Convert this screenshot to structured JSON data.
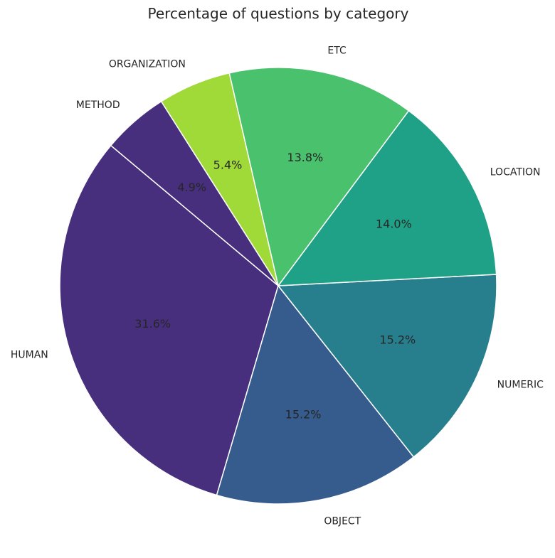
{
  "chart_data": {
    "type": "pie",
    "title": "Percentage of questions by category",
    "labels": [
      "HUMAN",
      "OBJECT",
      "NUMERIC",
      "LOCATION",
      "ETC",
      "ORGANIZATION",
      "METHOD"
    ],
    "values": [
      31.6,
      15.2,
      15.2,
      14.0,
      13.8,
      5.4,
      4.9
    ],
    "value_labels": [
      "31.6%",
      "15.2%",
      "15.2%",
      "14.0%",
      "13.8%",
      "5.4%",
      "4.9%"
    ],
    "colors": [
      "#472f7d",
      "#365c8d",
      "#277f8e",
      "#1fa187",
      "#4ac16d",
      "#a0da39",
      "#472f7d"
    ],
    "edge_color": "#ffffff"
  }
}
